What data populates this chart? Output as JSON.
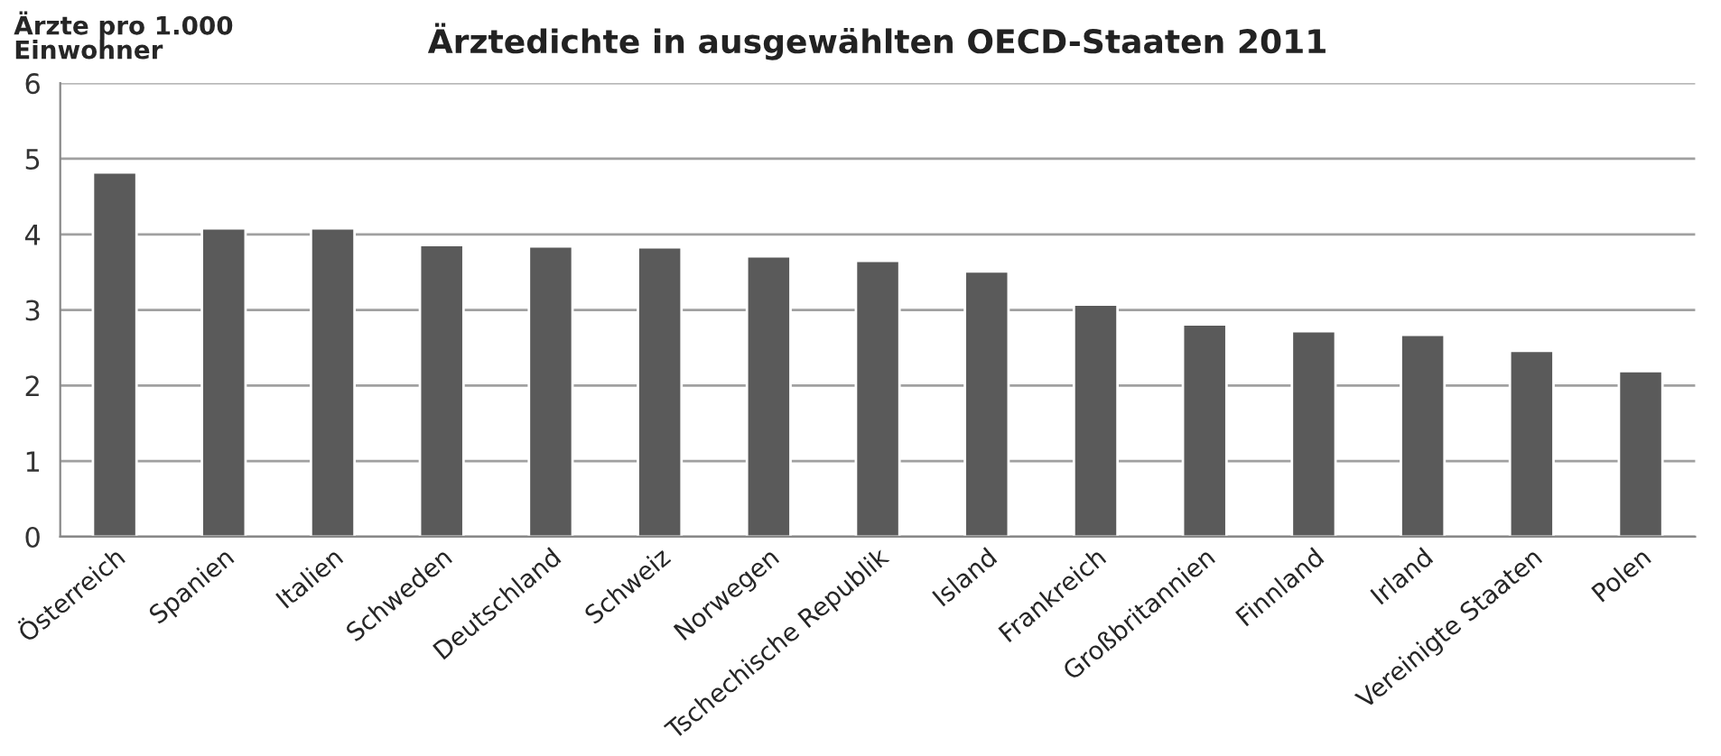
{
  "chart_data": {
    "type": "bar",
    "title": "Ärztedichte in ausgewählten OECD-Staaten 2011",
    "ylabel": "Ärzte pro 1.000\nEinwohner",
    "categories": [
      "Österreich",
      "Spanien",
      "Italien",
      "Schweden",
      "Deutschland",
      "Schweiz",
      "Norwegen",
      "Tschechische Republik",
      "Island",
      "Frankreich",
      "Großbritannien",
      "Finnland",
      "Irland",
      "Vereinigte Staaten",
      "Polen"
    ],
    "values": [
      4.82,
      4.08,
      4.08,
      3.86,
      3.84,
      3.83,
      3.71,
      3.65,
      3.51,
      3.07,
      2.81,
      2.72,
      2.67,
      2.46,
      2.19
    ],
    "color": "#5a5a5a",
    "ylim": [
      0,
      6
    ],
    "yticks": [
      0,
      1,
      2,
      3,
      4,
      5,
      6
    ],
    "grid": "y",
    "legend": false
  }
}
